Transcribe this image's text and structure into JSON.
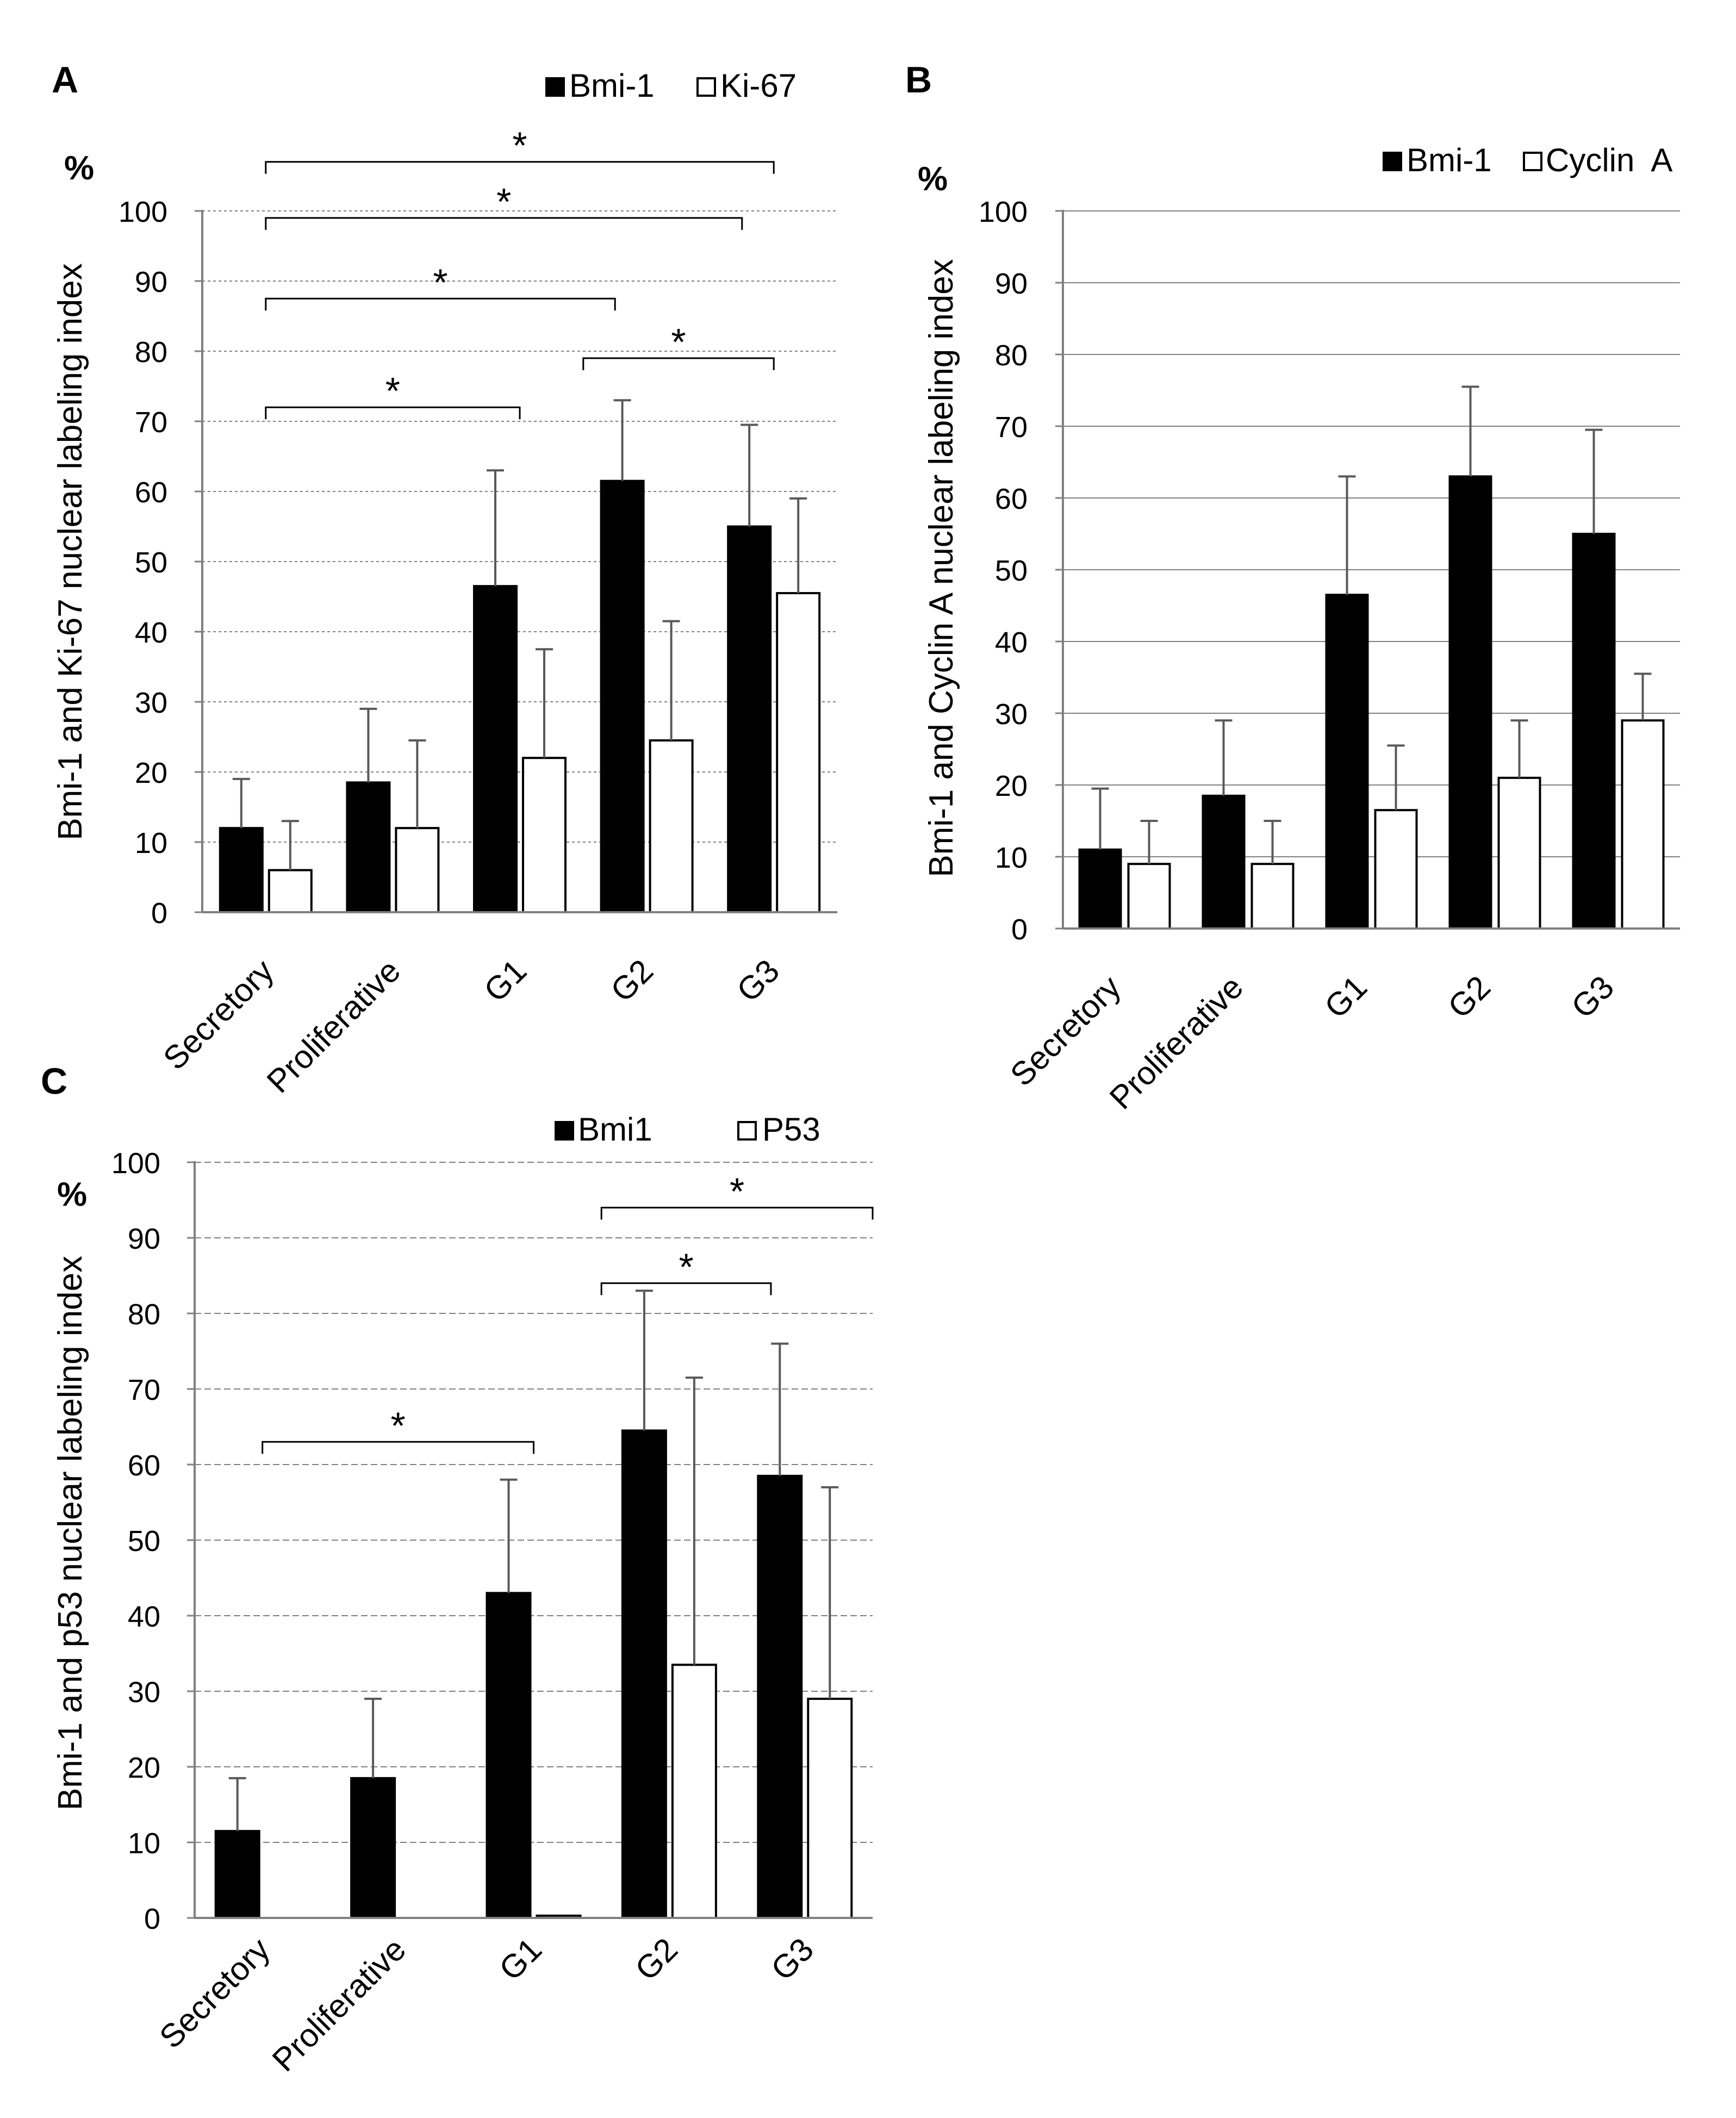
{
  "figure": {
    "colors": {
      "bmi": "#000000",
      "other": "#ffffff",
      "grid": "#808080",
      "err": "#595959"
    }
  },
  "chart_data": [
    {
      "panel": "A",
      "type": "bar",
      "ylabel": "Bmi-1 and Ki-67 nuclear labeling index",
      "unit_label": "%",
      "ylim": [
        0,
        100
      ],
      "yticks": [
        0,
        10,
        20,
        30,
        40,
        50,
        60,
        70,
        80,
        90,
        100
      ],
      "grid": "dotted",
      "legend_position": "top-right",
      "categories": [
        "Secretory",
        "Proliferative",
        "G1",
        "G2",
        "G3"
      ],
      "series": [
        {
          "name": "Bmi-1",
          "fill": "black",
          "values": [
            12,
            18.5,
            46.5,
            61.5,
            55
          ],
          "errors": [
            7,
            10.5,
            16.5,
            11.5,
            14.5
          ]
        },
        {
          "name": "Ki-67",
          "fill": "white",
          "values": [
            6,
            12,
            22,
            24.5,
            45.5
          ],
          "errors": [
            7,
            12.5,
            15.5,
            17,
            13.5
          ]
        }
      ],
      "significance": [
        {
          "label": "*",
          "from": 0,
          "to": 4,
          "y": 107
        },
        {
          "label": "*",
          "from": 0,
          "to": 3.75,
          "y": 99
        },
        {
          "label": "*",
          "from": 0,
          "to": 2.75,
          "y": 87.5
        },
        {
          "label": "*",
          "from": 2.5,
          "to": 4,
          "y": 79
        },
        {
          "label": "*",
          "from": 0,
          "to": 2,
          "y": 72
        }
      ]
    },
    {
      "panel": "B",
      "type": "bar",
      "ylabel": "Bmi-1 and Cyclin A nuclear labeling index",
      "unit_label": "%",
      "ylim": [
        0,
        100
      ],
      "yticks": [
        0,
        10,
        20,
        30,
        40,
        50,
        60,
        70,
        80,
        90,
        100
      ],
      "grid": "solid",
      "legend_position": "top-right",
      "categories": [
        "Secretory",
        "Proliferative",
        "G1",
        "G2",
        "G3"
      ],
      "series": [
        {
          "name": "Bmi-1",
          "fill": "black",
          "values": [
            11,
            18.5,
            46.5,
            63,
            55
          ],
          "errors": [
            8.5,
            10.5,
            16.5,
            12.5,
            14.5
          ]
        },
        {
          "name": "Cyclin  A",
          "fill": "white",
          "values": [
            9,
            9,
            16.5,
            21,
            29
          ],
          "errors": [
            6,
            6,
            9,
            8,
            6.5
          ]
        }
      ],
      "significance": []
    },
    {
      "panel": "C",
      "type": "bar",
      "ylabel": "Bmi-1 and p53 nuclear labeling index",
      "unit_label": "%",
      "ylim": [
        0,
        100
      ],
      "yticks": [
        0,
        10,
        20,
        30,
        40,
        50,
        60,
        70,
        80,
        90,
        100
      ],
      "grid": "dashed",
      "legend_position": "top-right",
      "categories": [
        "Secretory",
        "Proliferative",
        "G1",
        "G2",
        "G3"
      ],
      "series": [
        {
          "name": "Bmi1",
          "fill": "black",
          "values": [
            11.5,
            18.5,
            43,
            64.5,
            58.5
          ],
          "errors": [
            7,
            10.5,
            15,
            18.5,
            17.5
          ]
        },
        {
          "name": "P53",
          "fill": "white",
          "values": [
            0,
            0,
            0.3,
            33.5,
            29
          ],
          "errors": [
            0,
            0,
            0,
            38,
            28
          ]
        }
      ],
      "significance": [
        {
          "label": "*",
          "from": 2.5,
          "to": 4.5,
          "y": 94
        },
        {
          "label": "*",
          "from": 2.5,
          "to": 3.75,
          "y": 84
        },
        {
          "label": "*",
          "from": 0,
          "to": 2,
          "y": 63
        }
      ]
    }
  ]
}
